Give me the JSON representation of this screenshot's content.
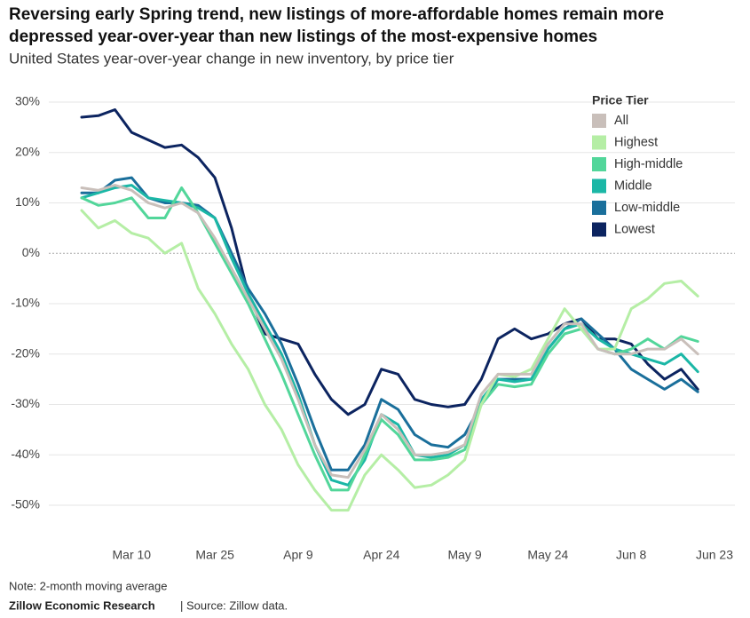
{
  "chart_data": {
    "type": "line",
    "title": [
      "Reversing early Spring trend, new listings of more-affordable homes remain more",
      "depressed year-over-year than new listings of the most-expensive homes"
    ],
    "subtitle": "United States year-over-year change in new inventory, by price tier",
    "note": "Note: 2-month moving average",
    "source": [
      "Zillow Economic Research",
      "| Source: Zillow data."
    ],
    "legend_title": "Price Tier",
    "legend": "top-right",
    "grid": true,
    "x": [
      "Mar 1",
      "Mar 4",
      "Mar 7",
      "Mar 10",
      "Mar 13",
      "Mar 16",
      "Mar 19",
      "Mar 22",
      "Mar 25",
      "Mar 28",
      "Mar 31",
      "Apr 3",
      "Apr 6",
      "Apr 9",
      "Apr 12",
      "Apr 15",
      "Apr 18",
      "Apr 21",
      "Apr 24",
      "Apr 27",
      "Apr 30",
      "May 3",
      "May 6",
      "May 9",
      "May 12",
      "May 15",
      "May 18",
      "May 21",
      "May 24",
      "May 27",
      "May 30",
      "Jun 2",
      "Jun 5",
      "Jun 8",
      "Jun 11",
      "Jun 14",
      "Jun 17",
      "Jun 20",
      "Jun 23"
    ],
    "xticks": [
      "Mar 10",
      "Mar 25",
      "Apr 9",
      "Apr 24",
      "May 9",
      "May 24",
      "Jun 8",
      "Jun 23"
    ],
    "ylim": [
      -56,
      33
    ],
    "yticks": [
      {
        "value": 30,
        "label": "30%"
      },
      {
        "value": 20,
        "label": "20%"
      },
      {
        "value": 10,
        "label": "10%"
      },
      {
        "value": 0,
        "label": "0%"
      },
      {
        "value": -10,
        "label": "-10%"
      },
      {
        "value": -20,
        "label": "-20%"
      },
      {
        "value": -30,
        "label": "-30%"
      },
      {
        "value": -40,
        "label": "-40%"
      },
      {
        "value": -50,
        "label": "-50%"
      }
    ],
    "series": [
      {
        "name": "All",
        "color": "#c9bfba",
        "values": [
          13,
          12.5,
          13.5,
          12.5,
          10,
          9,
          10,
          8,
          3,
          -3,
          -9,
          -15,
          -21,
          -29,
          -38,
          -44,
          -44.5,
          -39,
          -32,
          -35,
          -40,
          -40,
          -39.5,
          -38,
          -28,
          -24,
          -24,
          -24,
          -18,
          -14,
          -14,
          -19,
          -20,
          -20,
          -19,
          -19,
          -17,
          -20,
          null
        ]
      },
      {
        "name": "Highest",
        "color": "#b5eea5",
        "values": [
          8.5,
          5,
          6.5,
          4,
          3,
          0,
          2,
          -7,
          -12,
          -18,
          -23,
          -30,
          -35,
          -42,
          -47,
          -51,
          -51,
          -44,
          -40,
          -43,
          -46.5,
          -46,
          -44,
          -41,
          -30,
          -24,
          -24.5,
          -23,
          -17,
          -11,
          -15,
          -19,
          -19,
          -11,
          -9,
          -6,
          -5.5,
          -8.5,
          null
        ]
      },
      {
        "name": "High-middle",
        "color": "#52d69a",
        "values": [
          11,
          9.5,
          10,
          11,
          7,
          7,
          13,
          8,
          2,
          -4,
          -10,
          -17,
          -24,
          -32,
          -40,
          -47,
          -47,
          -40,
          -33,
          -36,
          -41,
          -41,
          -40.5,
          -39,
          -30,
          -26,
          -26.5,
          -26,
          -20,
          -16,
          -15,
          -19,
          -20,
          -19,
          -17,
          -19,
          -16.5,
          -17.5,
          null
        ]
      },
      {
        "name": "Middle",
        "color": "#1bb7a6",
        "values": [
          11,
          12,
          13,
          13.5,
          11,
          10.5,
          10,
          9,
          7,
          -1,
          -8,
          -14,
          -20,
          -28,
          -38,
          -45,
          -46,
          -41,
          -32,
          -34,
          -40,
          -40.5,
          -40,
          -38,
          -29,
          -25,
          -25.5,
          -25,
          -19,
          -15,
          -14,
          -17,
          -19,
          -20,
          -21,
          -22,
          -20,
          -23.5,
          null
        ]
      },
      {
        "name": "Low-middle",
        "color": "#1a6f9b",
        "values": [
          12,
          12,
          14.5,
          15,
          11,
          10,
          10,
          9.5,
          7,
          0,
          -7,
          -12,
          -18,
          -26,
          -35,
          -43,
          -43,
          -38,
          -29,
          -31,
          -36,
          -38,
          -38.5,
          -36,
          -30,
          -25,
          -25,
          -25,
          -19,
          -15,
          -13,
          -16,
          -19,
          -23,
          -25,
          -27,
          -25,
          -27.5,
          null
        ]
      },
      {
        "name": "Lowest",
        "color": "#0c2460",
        "values": [
          27,
          27.3,
          28.5,
          24,
          22.5,
          21,
          21.5,
          19,
          15,
          5,
          -8,
          -16,
          -17,
          -18,
          -24,
          -29,
          -32,
          -30,
          -23,
          -24,
          -29,
          -30,
          -30.5,
          -30,
          -25,
          -17,
          -15,
          -17,
          -16,
          -14,
          -13,
          -17,
          -17,
          -18,
          -22,
          -25,
          -23,
          -27,
          null
        ]
      }
    ]
  }
}
